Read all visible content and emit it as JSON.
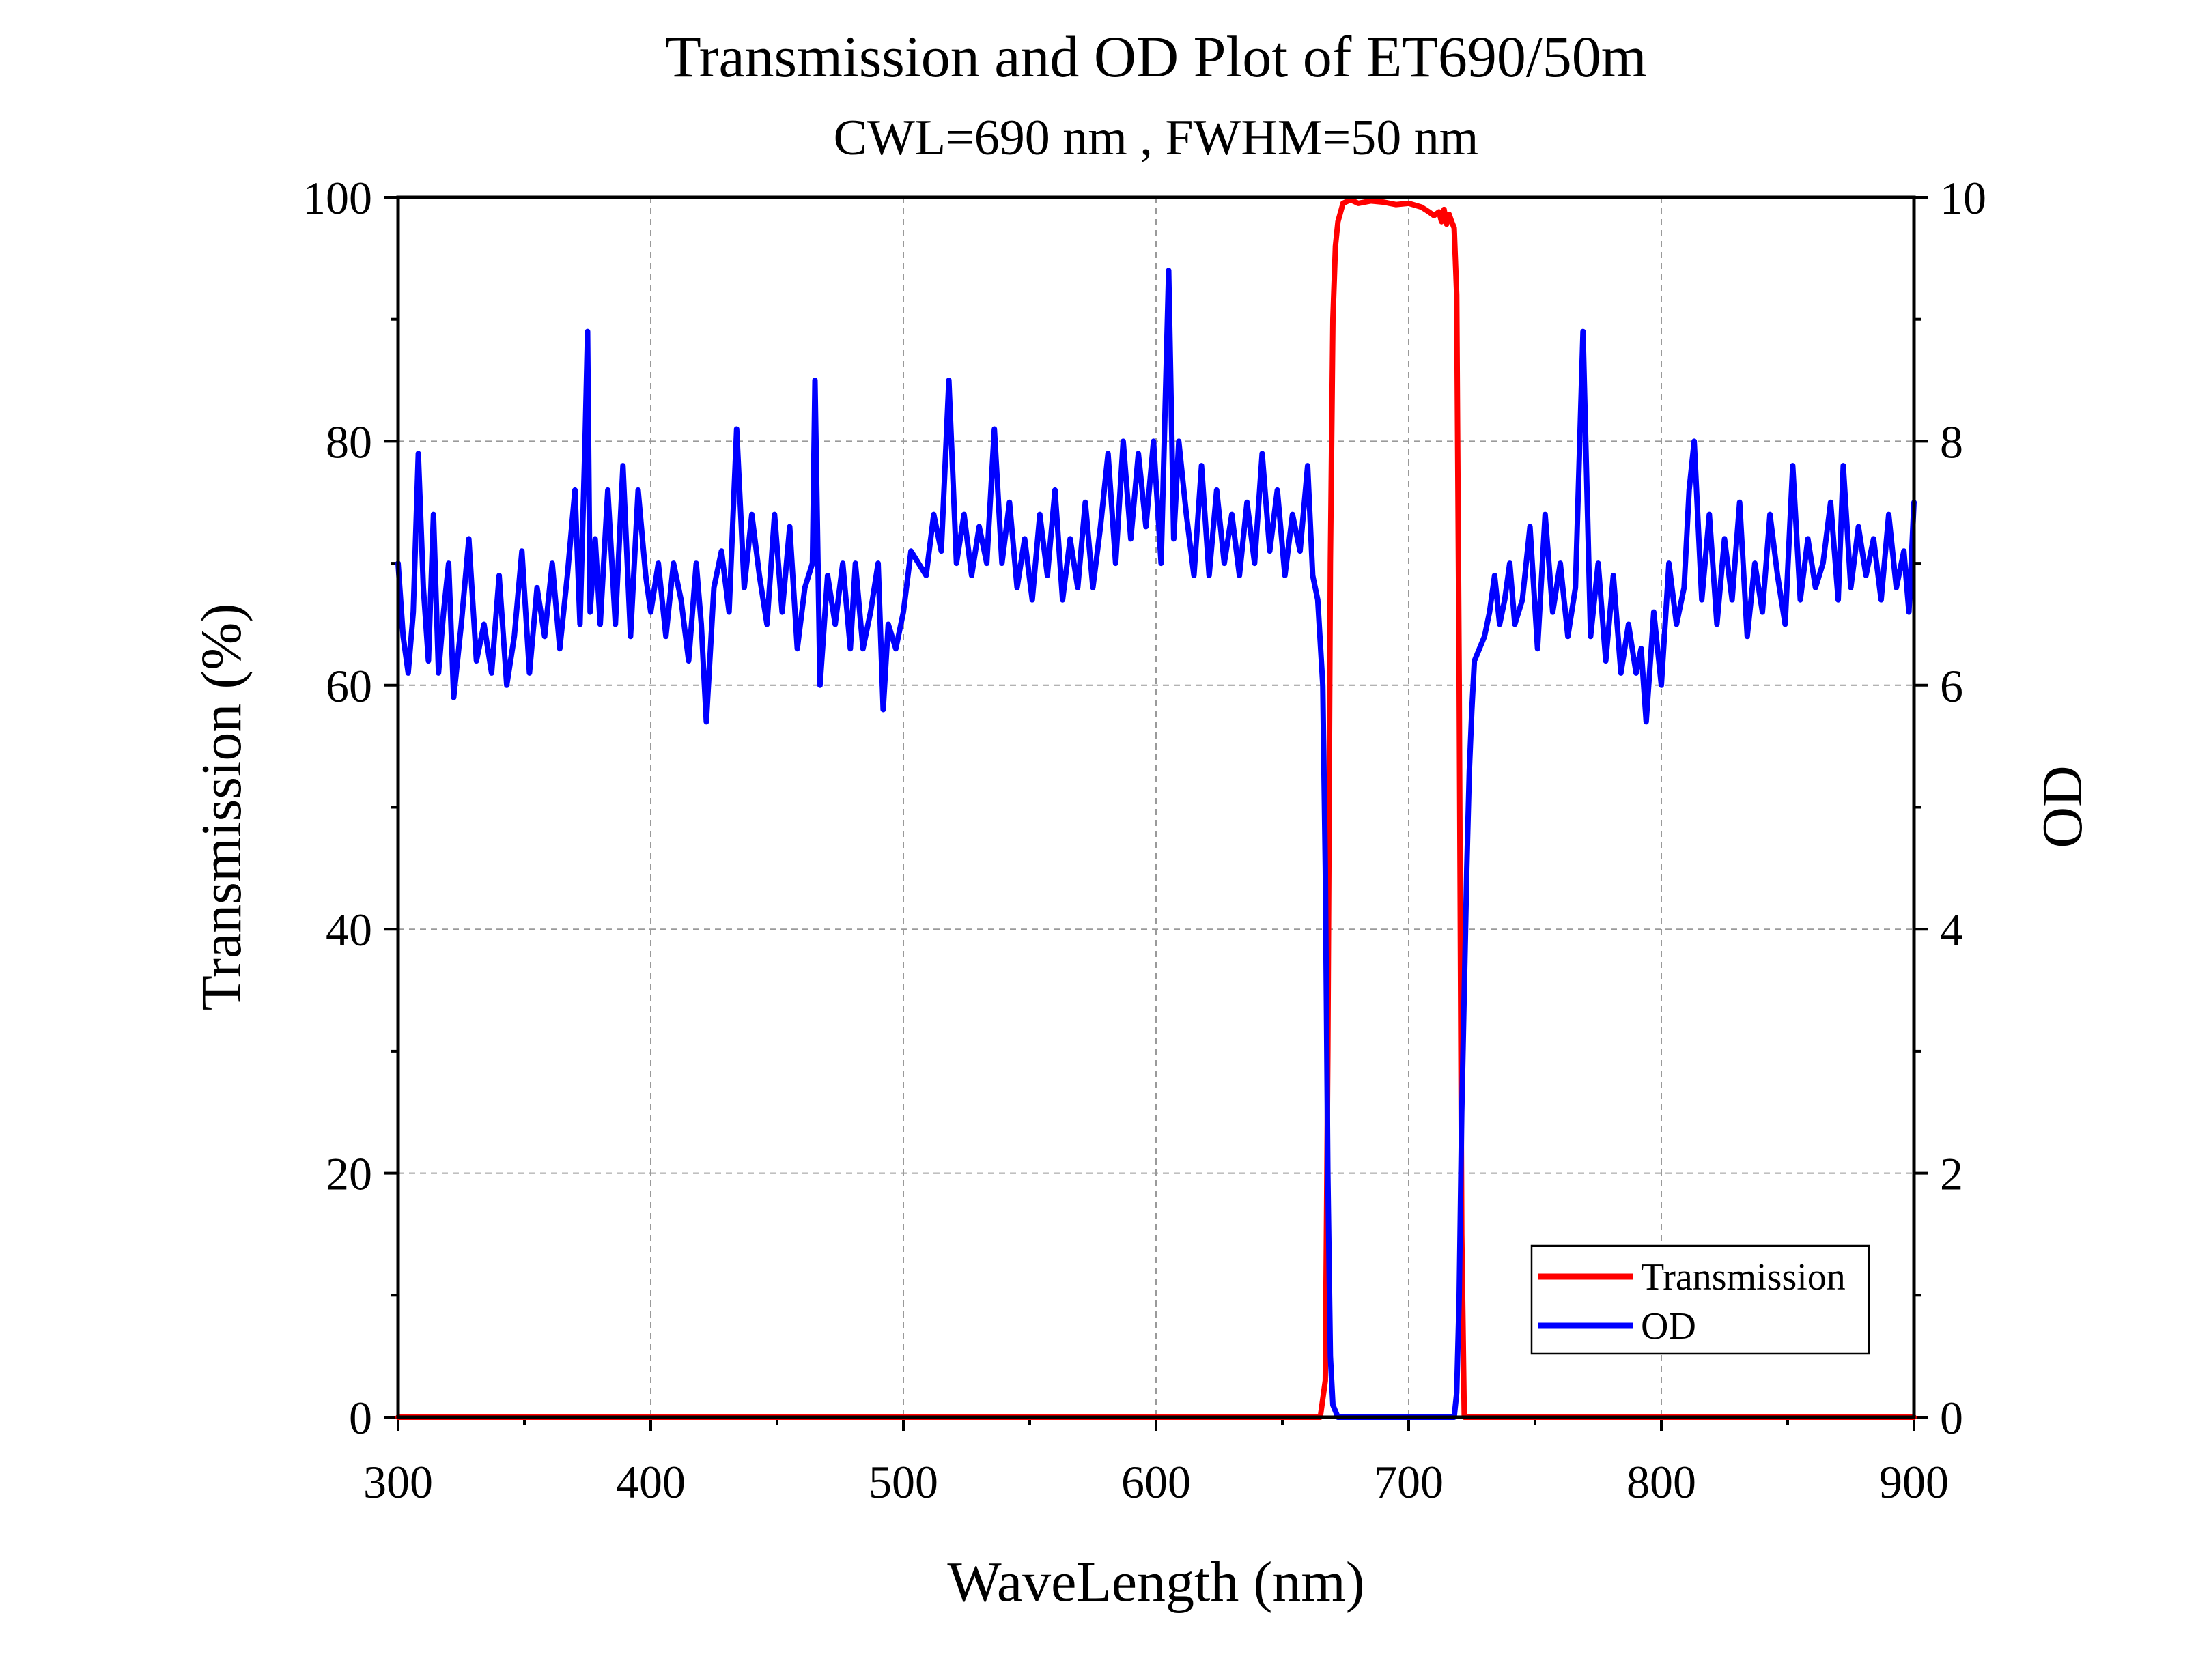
{
  "chart_data": {
    "type": "line",
    "title": "Transmission and OD Plot of ET690/50m",
    "subtitle": "CWL=690 nm , FWHM=50 nm",
    "xlabel": "WaveLength (nm)",
    "ylabel": "Transmission (%)",
    "y2label": "OD",
    "xlim": [
      300,
      900
    ],
    "ylim": [
      0,
      100
    ],
    "y2lim": [
      0,
      10
    ],
    "xticks": [
      300,
      400,
      500,
      600,
      700,
      800,
      900
    ],
    "yticks": [
      0,
      20,
      40,
      60,
      80,
      100
    ],
    "y2ticks": [
      0,
      2,
      4,
      6,
      8,
      10
    ],
    "grid": true,
    "legend_position": "bottom-right",
    "series": [
      {
        "name": "Transmission",
        "axis": "left",
        "color": "#ff0000",
        "x": [
          300,
          665,
          667,
          668,
          669,
          670,
          671,
          672,
          674,
          677,
          680,
          685,
          690,
          695,
          700,
          705,
          708,
          710,
          712,
          713,
          714,
          715,
          716,
          717,
          718,
          719,
          720,
          721,
          722,
          900
        ],
        "y": [
          0,
          0,
          3,
          30,
          70,
          90,
          96,
          98,
          99.5,
          99.8,
          99.5,
          99.7,
          99.6,
          99.4,
          99.5,
          99.2,
          98.8,
          98.5,
          98.8,
          98.0,
          99.0,
          97.8,
          98.6,
          98.0,
          97.5,
          92,
          60,
          15,
          0,
          0
        ]
      },
      {
        "name": "OD",
        "axis": "right",
        "color": "#0000ff",
        "x": [
          300,
          302,
          304,
          306,
          308,
          310,
          312,
          314,
          316,
          318,
          320,
          322,
          325,
          328,
          331,
          334,
          337,
          340,
          343,
          346,
          349,
          352,
          355,
          358,
          361,
          364,
          367,
          370,
          372,
          374,
          375,
          376,
          378,
          380,
          383,
          386,
          389,
          392,
          395,
          398,
          400,
          403,
          406,
          409,
          412,
          415,
          418,
          420,
          422,
          425,
          428,
          431,
          434,
          437,
          440,
          443,
          446,
          449,
          452,
          455,
          458,
          461,
          464,
          465,
          467,
          470,
          473,
          476,
          479,
          481,
          484,
          487,
          490,
          492,
          494,
          497,
          500,
          503,
          506,
          509,
          512,
          515,
          518,
          521,
          524,
          527,
          530,
          533,
          536,
          539,
          542,
          545,
          548,
          551,
          554,
          557,
          560,
          563,
          566,
          569,
          572,
          575,
          578,
          581,
          584,
          587,
          590,
          593,
          596,
          599,
          602,
          605,
          607,
          609,
          612,
          615,
          618,
          621,
          624,
          627,
          630,
          633,
          636,
          639,
          642,
          645,
          648,
          651,
          654,
          657,
          660,
          662,
          664,
          666,
          667,
          668,
          669,
          670,
          672,
          680,
          690,
          700,
          710,
          715,
          718,
          719,
          720,
          721,
          722,
          723,
          724,
          725,
          726,
          728,
          730,
          732,
          734,
          736,
          738,
          740,
          742,
          745,
          748,
          751,
          754,
          757,
          760,
          763,
          766,
          769,
          772,
          775,
          778,
          781,
          784,
          787,
          790,
          792,
          794,
          797,
          800,
          803,
          806,
          809,
          811,
          813,
          816,
          819,
          822,
          825,
          828,
          831,
          834,
          837,
          840,
          843,
          846,
          849,
          852,
          855,
          858,
          861,
          864,
          867,
          870,
          872,
          875,
          878,
          881,
          884,
          887,
          890,
          893,
          896,
          898,
          900
        ],
        "y": [
          7.0,
          6.4,
          6.1,
          6.6,
          7.9,
          6.8,
          6.2,
          7.4,
          6.1,
          6.6,
          7.0,
          5.9,
          6.5,
          7.2,
          6.2,
          6.5,
          6.1,
          6.9,
          6.0,
          6.4,
          7.1,
          6.1,
          6.8,
          6.4,
          7.0,
          6.3,
          6.9,
          7.6,
          6.5,
          8.0,
          8.9,
          6.6,
          7.2,
          6.5,
          7.6,
          6.5,
          7.8,
          6.4,
          7.6,
          6.9,
          6.6,
          7.0,
          6.4,
          7.0,
          6.7,
          6.2,
          7.0,
          6.5,
          5.7,
          6.8,
          7.1,
          6.6,
          8.1,
          6.8,
          7.4,
          6.9,
          6.5,
          7.4,
          6.6,
          7.3,
          6.3,
          6.8,
          7.0,
          8.5,
          6.0,
          6.9,
          6.5,
          7.0,
          6.3,
          7.0,
          6.3,
          6.6,
          7.0,
          5.8,
          6.5,
          6.3,
          6.6,
          7.1,
          7.0,
          6.9,
          7.4,
          7.1,
          8.5,
          7.0,
          7.4,
          6.9,
          7.3,
          7.0,
          8.1,
          7.0,
          7.5,
          6.8,
          7.2,
          6.7,
          7.4,
          6.9,
          7.6,
          6.7,
          7.2,
          6.8,
          7.5,
          6.8,
          7.3,
          7.9,
          7.0,
          8.0,
          7.2,
          7.9,
          7.3,
          8.0,
          7.0,
          9.4,
          7.2,
          8.0,
          7.4,
          6.9,
          7.8,
          6.9,
          7.6,
          7.0,
          7.4,
          6.9,
          7.5,
          7.0,
          7.9,
          7.1,
          7.6,
          6.9,
          7.4,
          7.1,
          7.8,
          6.9,
          6.7,
          6.0,
          4.5,
          2.0,
          0.5,
          0.1,
          0.0,
          0.0,
          0.0,
          0.0,
          0.0,
          0.0,
          0.0,
          0.2,
          1.0,
          2.5,
          3.5,
          4.5,
          5.3,
          5.8,
          6.2,
          6.3,
          6.4,
          6.6,
          6.9,
          6.5,
          6.7,
          7.0,
          6.5,
          6.7,
          7.3,
          6.3,
          7.4,
          6.6,
          7.0,
          6.4,
          6.8,
          8.9,
          6.4,
          7.0,
          6.2,
          6.9,
          6.1,
          6.5,
          6.1,
          6.3,
          5.7,
          6.6,
          6.0,
          7.0,
          6.5,
          6.8,
          7.6,
          8.0,
          6.7,
          7.4,
          6.5,
          7.2,
          6.7,
          7.5,
          6.4,
          7.0,
          6.6,
          7.4,
          6.9,
          6.5,
          7.8,
          6.7,
          7.2,
          6.8,
          7.0,
          7.5,
          6.7,
          7.8,
          6.8,
          7.3,
          6.9,
          7.2,
          6.7,
          7.4,
          6.8,
          7.1,
          6.6,
          7.5
        ]
      }
    ]
  }
}
